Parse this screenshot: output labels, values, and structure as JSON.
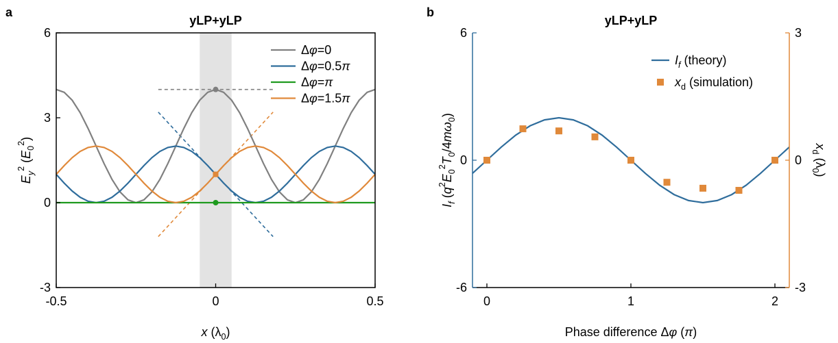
{
  "chart_data": [
    {
      "type": "line",
      "label": "a",
      "title": "yLP+yLP",
      "xlabel": [
        {
          "text": "x",
          "style": "italic"
        },
        {
          "text": " (λ"
        },
        {
          "text": "0",
          "style": "sub"
        },
        {
          "text": ")"
        }
      ],
      "ylabel": [
        {
          "text": "E",
          "style": "italic"
        },
        {
          "text": "y",
          "style": "italic-sub"
        },
        {
          "text": "2",
          "style": "sup"
        },
        {
          "text": " ("
        },
        {
          "text": "E",
          "style": "italic"
        },
        {
          "text": "0",
          "style": "sub"
        },
        {
          "text": "2",
          "style": "sup"
        },
        {
          "text": ")"
        }
      ],
      "xlim": [
        -0.5,
        0.5
      ],
      "ylim": [
        -3,
        6
      ],
      "xticks": [
        -0.5,
        0,
        0.5
      ],
      "yticks": [
        -3,
        0,
        3,
        6
      ],
      "frame": "box",
      "legend": "upper right",
      "band": [
        -0.05,
        0.05
      ],
      "band_color": "#e3e3e3",
      "x": [
        -0.5,
        -0.475,
        -0.45,
        -0.425,
        -0.4,
        -0.375,
        -0.35,
        -0.325,
        -0.3,
        -0.275,
        -0.25,
        -0.225,
        -0.2,
        -0.175,
        -0.15,
        -0.125,
        -0.1,
        -0.075,
        -0.05,
        -0.025,
        0,
        0.025,
        0.05,
        0.075,
        0.1,
        0.125,
        0.15,
        0.175,
        0.2,
        0.225,
        0.25,
        0.275,
        0.3,
        0.325,
        0.35,
        0.375,
        0.4,
        0.425,
        0.45,
        0.475,
        0.5
      ],
      "series": [
        {
          "name": [
            {
              "text": "Δ"
            },
            {
              "text": "φ",
              "style": "italic"
            },
            {
              "text": "=0"
            }
          ],
          "color": "#808080",
          "values": [
            4,
            3.9,
            3.62,
            3.18,
            2.62,
            2,
            1.38,
            0.82,
            0.38,
            0.1,
            0,
            0.1,
            0.38,
            0.82,
            1.38,
            2,
            2.62,
            3.18,
            3.62,
            3.9,
            4,
            3.9,
            3.62,
            3.18,
            2.62,
            2,
            1.38,
            0.82,
            0.38,
            0.1,
            0,
            0.1,
            0.38,
            0.82,
            1.38,
            2,
            2.62,
            3.18,
            3.62,
            3.9,
            4
          ]
        },
        {
          "name": [
            {
              "text": "Δ"
            },
            {
              "text": "φ",
              "style": "italic"
            },
            {
              "text": "=0.5"
            },
            {
              "text": "π",
              "style": "italic"
            }
          ],
          "color": "#2f6d9c",
          "values": [
            1,
            0.69,
            0.41,
            0.19,
            0.05,
            0,
            0.05,
            0.19,
            0.41,
            0.69,
            1,
            1.31,
            1.59,
            1.81,
            1.95,
            2,
            1.95,
            1.81,
            1.59,
            1.31,
            1,
            0.69,
            0.41,
            0.19,
            0.05,
            0,
            0.05,
            0.19,
            0.41,
            0.69,
            1,
            1.31,
            1.59,
            1.81,
            1.95,
            2,
            1.95,
            1.81,
            1.59,
            1.31,
            1
          ]
        },
        {
          "name": [
            {
              "text": "Δ"
            },
            {
              "text": "φ",
              "style": "italic"
            },
            {
              "text": "="
            },
            {
              "text": "π",
              "style": "italic"
            }
          ],
          "color": "#1e9a1e",
          "values": [
            0,
            0,
            0,
            0,
            0,
            0,
            0,
            0,
            0,
            0,
            0,
            0,
            0,
            0,
            0,
            0,
            0,
            0,
            0,
            0,
            0,
            0,
            0,
            0,
            0,
            0,
            0,
            0,
            0,
            0,
            0,
            0,
            0,
            0,
            0,
            0,
            0,
            0,
            0,
            0,
            0
          ]
        },
        {
          "name": [
            {
              "text": "Δ"
            },
            {
              "text": "φ",
              "style": "italic"
            },
            {
              "text": "=1.5"
            },
            {
              "text": "π",
              "style": "italic"
            }
          ],
          "color": "#e0893a",
          "values": [
            1,
            1.31,
            1.59,
            1.81,
            1.95,
            2,
            1.95,
            1.81,
            1.59,
            1.31,
            1,
            0.69,
            0.41,
            0.19,
            0.05,
            0,
            0.05,
            0.19,
            0.41,
            0.69,
            1,
            1.31,
            1.59,
            1.81,
            1.95,
            2,
            1.95,
            1.81,
            1.59,
            1.31,
            1,
            0.69,
            0.41,
            0.19,
            0.05,
            0,
            0.05,
            0.19,
            0.41,
            0.69,
            1
          ]
        }
      ],
      "guides": [
        {
          "color": "#808080",
          "x": [
            -0.18,
            0.18
          ],
          "y": [
            4,
            4
          ]
        },
        {
          "color": "#2f6d9c",
          "x": [
            -0.18,
            0.18
          ],
          "y": [
            3.2,
            -1.2
          ]
        },
        {
          "color": "#e0893a",
          "x": [
            -0.18,
            0.18
          ],
          "y": [
            -1.2,
            3.2
          ]
        }
      ],
      "points": {
        "x": [
          0,
          0,
          0
        ],
        "y": [
          4,
          1,
          0
        ],
        "colors": [
          "#808080",
          "#e0893a",
          "#1e9a1e"
        ],
        "shapes": [
          "circle",
          "square",
          "circle"
        ]
      }
    },
    {
      "type": "line",
      "label": "b",
      "title": "yLP+yLP",
      "xlabel": [
        {
          "text": "Phase difference Δ"
        },
        {
          "text": "φ",
          "style": "italic"
        },
        {
          "text": " ("
        },
        {
          "text": "π",
          "style": "italic"
        },
        {
          "text": ")"
        }
      ],
      "ylabel": [
        {
          "text": "I",
          "style": "italic"
        },
        {
          "text": "f",
          "style": "italic-sub"
        },
        {
          "text": "  ("
        },
        {
          "text": "q",
          "style": "italic"
        },
        {
          "text": "2",
          "style": "sup"
        },
        {
          "text": "E",
          "style": "italic"
        },
        {
          "text": "0",
          "style": "sub"
        },
        {
          "text": "2",
          "style": "sup"
        },
        {
          "text": "T",
          "style": "italic"
        },
        {
          "text": "0",
          "style": "sub"
        },
        {
          "text": "/4"
        },
        {
          "text": "mω",
          "style": "italic"
        },
        {
          "text": "0",
          "style": "sub"
        },
        {
          "text": ")"
        }
      ],
      "y2label": [
        {
          "text": "x",
          "style": "italic"
        },
        {
          "text": "d",
          "style": "sub"
        },
        {
          "text": " (λ"
        },
        {
          "text": "0",
          "style": "sub"
        },
        {
          "text": ")"
        }
      ],
      "xlim": [
        -0.1,
        2.1
      ],
      "ylim": [
        -6,
        6
      ],
      "y2lim": [
        -3,
        3
      ],
      "xticks": [
        0,
        1,
        2
      ],
      "yticks": [
        -6,
        0,
        6
      ],
      "y2ticks": [
        -3,
        0,
        3
      ],
      "ycolor": "#2f6d9c",
      "y2color": "#e0893a",
      "frame": "open",
      "legend": "upper right",
      "series": [
        {
          "name": [
            {
              "text": "I",
              "style": "italic"
            },
            {
              "text": "f",
              "style": "italic-sub"
            },
            {
              "text": "  (theory)"
            }
          ],
          "color": "#2f6d9c",
          "mode": "line",
          "x": [
            -0.1,
            0,
            0.1,
            0.2,
            0.3,
            0.4,
            0.5,
            0.6,
            0.7,
            0.8,
            0.9,
            1,
            1.1,
            1.2,
            1.3,
            1.4,
            1.5,
            1.6,
            1.7,
            1.8,
            1.9,
            2,
            2.1
          ],
          "values": [
            -0.62,
            0,
            0.62,
            1.18,
            1.62,
            1.9,
            2,
            1.9,
            1.62,
            1.18,
            0.62,
            0,
            -0.62,
            -1.18,
            -1.62,
            -1.9,
            -2,
            -1.9,
            -1.62,
            -1.18,
            -0.62,
            0,
            0.62
          ]
        },
        {
          "name": [
            {
              "text": "x",
              "style": "italic"
            },
            {
              "text": "d",
              "style": "sub"
            },
            {
              "text": " (simulation)"
            }
          ],
          "color": "#e0893a",
          "mode": "markers",
          "axis": "y2",
          "x": [
            0,
            0.25,
            0.5,
            0.75,
            1,
            1.25,
            1.5,
            1.75,
            2
          ],
          "values": [
            0,
            0.74,
            0.69,
            0.55,
            0,
            -0.52,
            -0.66,
            -0.71,
            0
          ]
        }
      ]
    }
  ]
}
